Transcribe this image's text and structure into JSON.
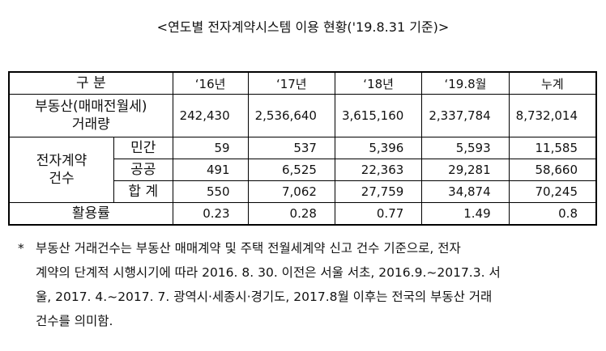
{
  "title": "<연도별 전자계약시스템 이용 현황('19.8.31 기준)>",
  "table": {
    "header": [
      "구 분",
      "‘16년",
      "‘17년",
      "‘18년",
      "‘19.8월",
      "누계"
    ],
    "transactions": {
      "label": [
        "부동산(매매전월세)",
        "거래량"
      ],
      "values": [
        "242,430",
        "2,536,640",
        "3,615,160",
        "2,337,784",
        "8,732,014"
      ]
    },
    "contracts": {
      "label": [
        "전자계약",
        "건수"
      ],
      "rows": [
        {
          "label": "민간",
          "values": [
            "59",
            "537",
            "5,396",
            "5,593",
            "11,585"
          ]
        },
        {
          "label": "공공",
          "values": [
            "491",
            "6,525",
            "22,363",
            "29,281",
            "58,660"
          ]
        },
        {
          "label": "합 계",
          "values": [
            "550",
            "7,062",
            "27,759",
            "34,874",
            "70,245"
          ]
        }
      ]
    },
    "utilization": {
      "label": "활용률",
      "values": [
        "0.23",
        "0.28",
        "0.77",
        "1.49",
        "0.8"
      ]
    }
  },
  "note": {
    "marker": "*",
    "lines": [
      "부동산 거래건수는 부동산 매매계약 및 주택 전월세계약 신고 건수 기준으로, 전자",
      "계약의 단계적 시행시기에 따라 2016. 8. 30. 이전은 서울 서초, 2016.9.~2017.3. 서",
      "울, 2017. 4.~2017. 7. 광역시·세종시·경기도, 2017.8월 이후는 전국의 부동산 거래",
      "건수를 의미함."
    ]
  }
}
